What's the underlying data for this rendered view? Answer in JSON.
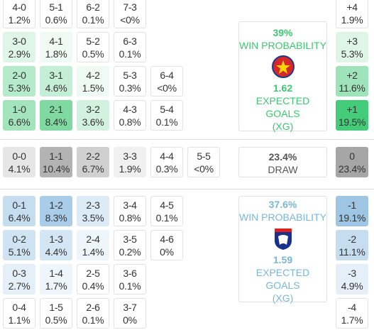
{
  "home": {
    "rows": [
      {
        "cells": [
          {
            "score": "4-0",
            "pct": "1.2%",
            "color": "#ffffff"
          },
          {
            "score": "5-1",
            "pct": "0.6%",
            "color": "#ffffff"
          },
          {
            "score": "6-2",
            "pct": "0.1%",
            "color": "#ffffff"
          },
          {
            "score": "7-3",
            "pct": "<0%",
            "color": "#ffffff"
          }
        ],
        "margin": {
          "label": "+4",
          "pct": "1.9%",
          "color": "#ffffff"
        }
      },
      {
        "cells": [
          {
            "score": "3-0",
            "pct": "2.9%",
            "color": "#dff5e8"
          },
          {
            "score": "4-1",
            "pct": "1.8%",
            "color": "#eefaf3"
          },
          {
            "score": "5-2",
            "pct": "0.5%",
            "color": "#ffffff"
          },
          {
            "score": "6-3",
            "pct": "0.1%",
            "color": "#ffffff"
          }
        ],
        "margin": {
          "label": "+3",
          "pct": "5.3%",
          "color": "#dff5e8"
        }
      },
      {
        "cells": [
          {
            "score": "2-0",
            "pct": "5.3%",
            "color": "#b5eacb"
          },
          {
            "score": "3-1",
            "pct": "4.6%",
            "color": "#c4eed5"
          },
          {
            "score": "4-2",
            "pct": "1.5%",
            "color": "#eefaf3"
          },
          {
            "score": "5-3",
            "pct": "0.3%",
            "color": "#ffffff"
          },
          {
            "score": "6-4",
            "pct": "<0%",
            "color": "#ffffff"
          }
        ],
        "margin": {
          "label": "+2",
          "pct": "11.6%",
          "color": "#9fe3bb"
        }
      },
      {
        "cells": [
          {
            "score": "1-0",
            "pct": "6.6%",
            "color": "#a3e4bd"
          },
          {
            "score": "2-1",
            "pct": "8.4%",
            "color": "#7fd9a1"
          },
          {
            "score": "3-2",
            "pct": "3.6%",
            "color": "#d2f2df"
          },
          {
            "score": "4-3",
            "pct": "0.8%",
            "color": "#ffffff"
          },
          {
            "score": "5-4",
            "pct": "0.1%",
            "color": "#ffffff"
          }
        ],
        "margin": {
          "label": "+1",
          "pct": "19.5%",
          "color": "#44cc7a"
        }
      }
    ],
    "card": {
      "win_pct": "39%",
      "win_label": "WIN PROBABILITY",
      "xg": "1.62",
      "xg_label": [
        "EXPECTED GOALS",
        "(XG)"
      ],
      "color": "#3cc870"
    }
  },
  "draw": {
    "rows": [
      {
        "cells": [
          {
            "score": "0-0",
            "pct": "4.1%",
            "color": "#e6e6e6"
          },
          {
            "score": "1-1",
            "pct": "10.4%",
            "color": "#b3b3b3"
          },
          {
            "score": "2-2",
            "pct": "6.7%",
            "color": "#d0d0d0"
          },
          {
            "score": "3-3",
            "pct": "1.9%",
            "color": "#f0f0f0"
          },
          {
            "score": "4-4",
            "pct": "0.3%",
            "color": "#ffffff"
          },
          {
            "score": "5-5",
            "pct": "<0%",
            "color": "#ffffff"
          }
        ],
        "margin": {
          "label": "0",
          "pct": "23.4%",
          "color": "#a6a6a6"
        }
      }
    ],
    "card": {
      "pct": "23.4%",
      "label": "DRAW",
      "color": "#555555"
    }
  },
  "away": {
    "rows": [
      {
        "cells": [
          {
            "score": "0-1",
            "pct": "6.4%",
            "color": "#c5ddef"
          },
          {
            "score": "1-2",
            "pct": "8.3%",
            "color": "#a9cce8"
          },
          {
            "score": "2-3",
            "pct": "3.5%",
            "color": "#dcebf6"
          },
          {
            "score": "3-4",
            "pct": "0.8%",
            "color": "#ffffff"
          },
          {
            "score": "4-5",
            "pct": "0.1%",
            "color": "#ffffff"
          }
        ],
        "margin": {
          "label": "-1",
          "pct": "19.1%",
          "color": "#9ec6e4"
        }
      },
      {
        "cells": [
          {
            "score": "0-2",
            "pct": "5.1%",
            "color": "#cfe3f2"
          },
          {
            "score": "1-3",
            "pct": "4.4%",
            "color": "#d4e6f3"
          },
          {
            "score": "2-4",
            "pct": "1.4%",
            "color": "#eef5fb"
          },
          {
            "score": "3-5",
            "pct": "0.2%",
            "color": "#ffffff"
          },
          {
            "score": "4-6",
            "pct": "0%",
            "color": "#ffffff"
          }
        ],
        "margin": {
          "label": "-2",
          "pct": "11.1%",
          "color": "#c5ddef"
        }
      },
      {
        "cells": [
          {
            "score": "0-3",
            "pct": "2.7%",
            "color": "#e4eff8"
          },
          {
            "score": "1-4",
            "pct": "1.7%",
            "color": "#eef5fb"
          },
          {
            "score": "2-5",
            "pct": "0.4%",
            "color": "#ffffff"
          },
          {
            "score": "3-6",
            "pct": "0.1%",
            "color": "#ffffff"
          }
        ],
        "margin": {
          "label": "-3",
          "pct": "4.9%",
          "color": "#e4eff8"
        }
      },
      {
        "cells": [
          {
            "score": "0-4",
            "pct": "1.1%",
            "color": "#ffffff"
          },
          {
            "score": "1-5",
            "pct": "0.5%",
            "color": "#ffffff"
          },
          {
            "score": "2-6",
            "pct": "0.1%",
            "color": "#ffffff"
          },
          {
            "score": "3-7",
            "pct": "0%",
            "color": "#ffffff"
          }
        ],
        "margin": {
          "label": "-4",
          "pct": "1.7%",
          "color": "#ffffff"
        }
      }
    ],
    "card": {
      "win_pct": "37.6%",
      "win_label": "WIN PROBABILITY",
      "xg": "1.59",
      "xg_label": [
        "EXPECTED GOALS",
        "(XG)"
      ],
      "color": "#7ab6da"
    }
  }
}
